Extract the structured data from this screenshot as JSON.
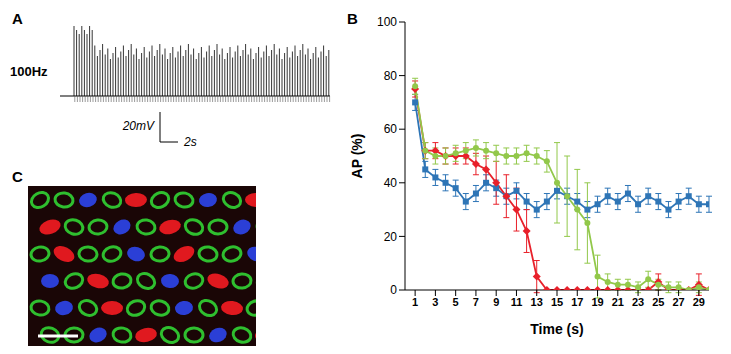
{
  "panel_labels": [
    "A",
    "B",
    "C"
  ],
  "panel_a": {
    "label": "100Hz",
    "scale_bar_y": "20mV",
    "scale_bar_x": "2s"
  },
  "chart_data": {
    "type": "line",
    "x": [
      1,
      2,
      3,
      4,
      5,
      6,
      7,
      8,
      9,
      10,
      11,
      12,
      13,
      14,
      15,
      16,
      17,
      18,
      19,
      20,
      21,
      22,
      23,
      24,
      25,
      26,
      27,
      28,
      29,
      30
    ],
    "xlim": [
      0,
      30
    ],
    "xticks": [
      1,
      3,
      5,
      7,
      9,
      11,
      13,
      15,
      17,
      19,
      21,
      23,
      25,
      27,
      29
    ],
    "ylim": [
      0,
      100
    ],
    "yticks": [
      0,
      20,
      40,
      60,
      80,
      100
    ],
    "x_label": "Time (s)",
    "y_label": "AP (%)",
    "grid": false,
    "series": [
      {
        "color": "#2e75b6",
        "marker": "square",
        "values": [
          70,
          45,
          42,
          40,
          38,
          33,
          36,
          40,
          38,
          35,
          37,
          33,
          30,
          33,
          37,
          35,
          33,
          30,
          32,
          35,
          33,
          36,
          32,
          35,
          33,
          30,
          33,
          35,
          32,
          32
        ],
        "errors": [
          3,
          3,
          3,
          3,
          3,
          3,
          3,
          3,
          3,
          3,
          3,
          3,
          3,
          3,
          3,
          3,
          3,
          3,
          3,
          3,
          3,
          3,
          3,
          3,
          3,
          3,
          3,
          3,
          3,
          3
        ]
      },
      {
        "color": "#e8202a",
        "marker": "diamond",
        "values": [
          75,
          52,
          52,
          50,
          50,
          50,
          47,
          45,
          40,
          35,
          30,
          22,
          5,
          0,
          0,
          0,
          0,
          0,
          0,
          0,
          0,
          0,
          0,
          0,
          3,
          0,
          0,
          0,
          2,
          0
        ],
        "errors": [
          3,
          3,
          3,
          3,
          3,
          3,
          4,
          5,
          8,
          8,
          8,
          8,
          6,
          0,
          0,
          0,
          0,
          0,
          0,
          0,
          0,
          0,
          0,
          0,
          3,
          0,
          0,
          0,
          4,
          0
        ]
      },
      {
        "color": "#92c84a",
        "marker": "circle",
        "values": [
          76,
          52,
          50,
          50,
          51,
          52,
          53,
          52,
          51,
          50,
          50,
          51,
          50,
          48,
          40,
          35,
          30,
          25,
          5,
          3,
          2,
          2,
          1,
          4,
          2,
          1,
          1,
          0,
          1,
          0
        ],
        "errors": [
          3,
          3,
          3,
          3,
          3,
          3,
          3,
          3,
          3,
          3,
          3,
          3,
          3,
          4,
          15,
          15,
          15,
          15,
          8,
          3,
          2,
          2,
          2,
          3,
          2,
          2,
          2,
          0,
          2,
          0
        ]
      }
    ]
  }
}
